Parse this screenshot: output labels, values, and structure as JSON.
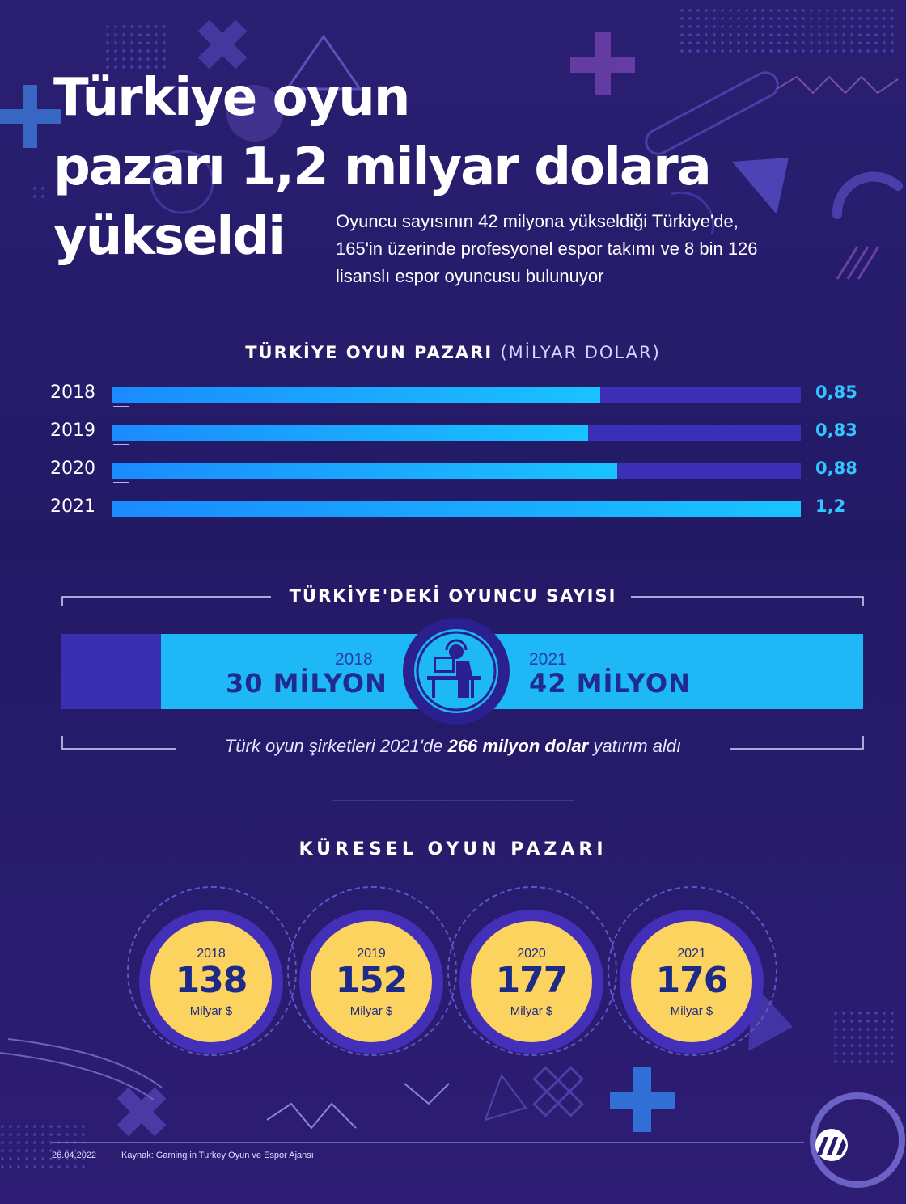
{
  "header": {
    "title_lines": [
      "Türkiye oyun",
      "pazarı 1,2 milyar dolara",
      "yükseldi"
    ],
    "subtitle_lines": [
      "Oyuncu sayısının 42 milyona yükseldiği Türkiye'de,",
      "165'in üzerinde profesyonel espor takımı ve 8 bin 126",
      "lisanslı espor oyuncusu bulunuyor"
    ]
  },
  "chart_data": [
    {
      "type": "bar",
      "title": "TÜRKİYE OYUN PAZARI",
      "unit_label": "(MİLYAR DOLAR)",
      "categories": [
        "2018",
        "2019",
        "2020",
        "2021"
      ],
      "values": [
        0.85,
        0.83,
        0.88,
        1.2
      ],
      "value_labels": [
        "0,85",
        "0,83",
        "0,88",
        "1,2"
      ],
      "xlim": [
        0,
        1.2
      ],
      "colors": {
        "fill": "#1b9bff",
        "track": "#3b2fb8",
        "value_text": "#32c6ff"
      }
    },
    {
      "type": "bubble",
      "title": "KÜRESEL OYUN PAZARI",
      "categories": [
        "2018",
        "2019",
        "2020",
        "2021"
      ],
      "values": [
        138,
        152,
        177,
        176
      ],
      "unit": "Milyar $",
      "colors": {
        "bubble": "#fcd35e",
        "ring": "#4430b8"
      }
    }
  ],
  "players": {
    "title": "TÜRKİYE'DEKİ OYUNCU SAYISI",
    "left_year": "2018",
    "left_value": "30 MİLYON",
    "right_year": "2021",
    "right_value": "42 MİLYON",
    "icon": "gamer-at-desk-icon"
  },
  "investment": {
    "prefix": "Türk oyun şirketleri 2021'de",
    "highlight": "266 milyon dolar",
    "suffix": "yatırım aldı"
  },
  "footer": {
    "date": "26.04.2022",
    "source": "Kaynak: Gaming in Turkey Oyun ve Espor Ajansı",
    "logo": "AA"
  },
  "colors": {
    "background": "#261b6c",
    "accent_blue": "#1db8f5",
    "accent_yellow": "#fcd35e"
  }
}
